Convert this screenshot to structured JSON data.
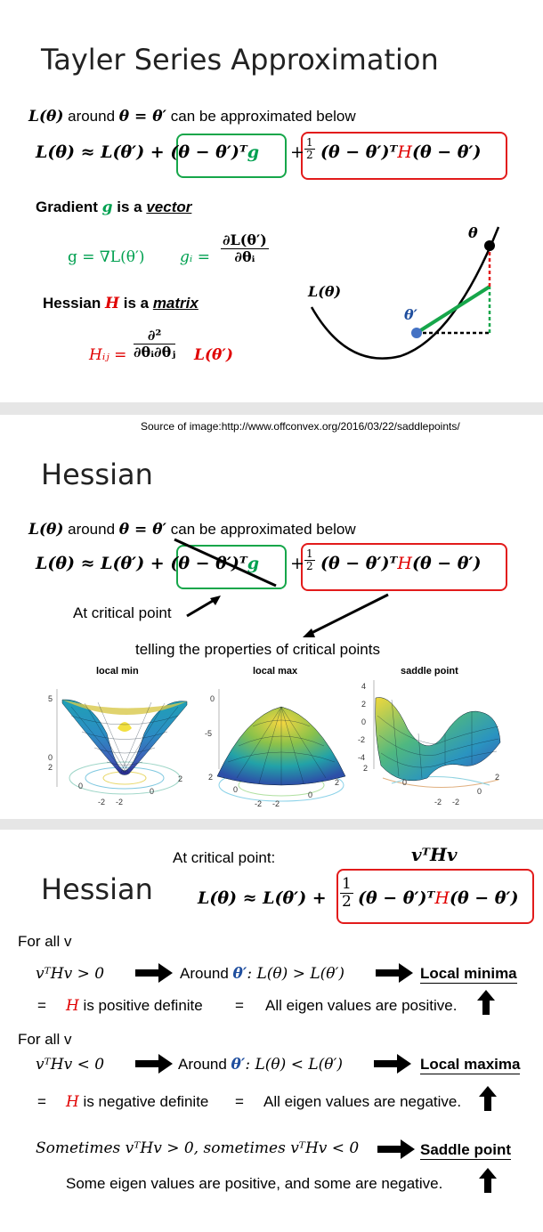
{
  "slide1": {
    "title": "Tayler Series Approximation",
    "intro_prefix": "L(θ)",
    "intro_mid1": " around ",
    "intro_cond": "θ = θ′",
    "intro_suffix": " can be approximated below",
    "equation": {
      "lhs": "L(θ) ≈ L(θ′) + ",
      "green_term": "(θ − θ′)ᵀ",
      "green_g": "g",
      "plus": "+",
      "half_num": "1",
      "half_den": "2",
      "red_term_a": "(θ − θ′)ᵀ",
      "red_H": "H",
      "red_term_b": "(θ − θ′)"
    },
    "gradient_label_pre": "Gradient ",
    "gradient_label_g": "g",
    "gradient_label_mid": " is a ",
    "gradient_label_vec": "vector",
    "gradient_def": "g = ∇L(θ′)",
    "gradient_gi": "gᵢ =",
    "gradient_num": "∂L(θ′)",
    "gradient_den": "∂θᵢ",
    "hessian_label_pre": "Hessian ",
    "hessian_label_H": "H",
    "hessian_label_mid": " is a ",
    "hessian_label_mat": "matrix",
    "hessian_hij": "Hᵢⱼ =",
    "hessian_num": "∂²",
    "hessian_den": "∂θᵢ∂θⱼ",
    "hessian_tail": "L(θ′)",
    "diagram": {
      "curve_label": "L(θ)",
      "theta_label": "θ",
      "theta_prime_label": "θ′"
    }
  },
  "source_text": "Source of image:http://www.offconvex.org/2016/03/22/saddlepoints/",
  "slide2": {
    "title": "Hessian",
    "intro_prefix": "L(θ)",
    "intro_mid1": " around ",
    "intro_cond": "θ = θ′",
    "intro_suffix": " can be approximated below",
    "equation": {
      "lhs": "L(θ) ≈ L(θ′) + ",
      "green_term": "(θ − θ′)ᵀ",
      "green_g": "g",
      "plus": "+",
      "half_num": "1",
      "half_den": "2",
      "red_term_a": "(θ − θ′)ᵀ",
      "red_H": "H",
      "red_term_b": "(θ − θ′)"
    },
    "critical_label": "At critical point",
    "telling_label": "telling the properties of critical points",
    "plots": [
      {
        "title": "local min",
        "yticks": [
          "5",
          "0"
        ],
        "xticks": [
          "-2",
          "-2",
          "0",
          "0",
          "2"
        ],
        "side_tick": "2"
      },
      {
        "title": "local max",
        "yticks": [
          "0",
          "-5"
        ],
        "xticks": [
          "-2",
          "-2",
          "0",
          "0",
          "2"
        ],
        "side_tick": "2"
      },
      {
        "title": "saddle point",
        "yticks": [
          "4",
          "2",
          "0",
          "-2",
          "-4"
        ],
        "xticks": [
          "-2",
          "-2",
          "0",
          "0",
          "2"
        ],
        "side_tick": "2"
      }
    ]
  },
  "slide3": {
    "title": "Hessian",
    "at_critical": "At critical point:",
    "vthv": "vᵀHv",
    "equation": {
      "lhs": "L(θ) ≈ L(θ′) + ",
      "half_num": "1",
      "half_den": "2",
      "red_term_a": "(θ − θ′)ᵀ",
      "red_H": "H",
      "red_term_b": "(θ − θ′)"
    },
    "for_all_1": "For all v",
    "cond1": "vᵀHv > 0",
    "around1_a": "Around ",
    "around1_b": "θ′",
    "around1_c": ": L(θ) > L(θ′)",
    "result1": "Local minima",
    "eq1_a": "=",
    "eq1_H": "H",
    "eq1_text": " is positive definite",
    "eq1_b": "=",
    "eig1": "All eigen values are positive.",
    "for_all_2": "For all v",
    "cond2": "vᵀHv < 0",
    "around2_a": "Around ",
    "around2_b": "θ′",
    "around2_c": ": L(θ) < L(θ′)",
    "result2": "Local maxima",
    "eq2_a": "=",
    "eq2_H": "H",
    "eq2_text": " is negative definite",
    "eq2_b": "=",
    "eig2": "All eigen values are negative.",
    "sometimes": "Sometimes vᵀHv > 0, sometimes vᵀHv < 0",
    "result3": "Saddle point",
    "eig3": "Some eigen values are positive, and some are negative."
  },
  "colors": {
    "green": "#16a64a",
    "red": "#e21b1b",
    "blue_point": "#4472c4"
  }
}
